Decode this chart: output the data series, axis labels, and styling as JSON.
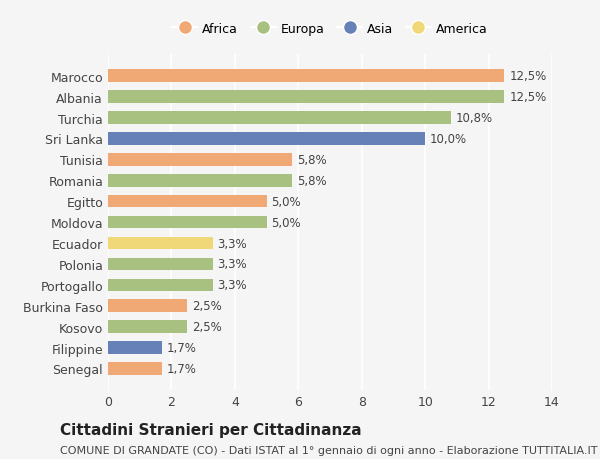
{
  "categories": [
    "Marocco",
    "Albania",
    "Turchia",
    "Sri Lanka",
    "Tunisia",
    "Romania",
    "Egitto",
    "Moldova",
    "Ecuador",
    "Polonia",
    "Portogallo",
    "Burkina Faso",
    "Kosovo",
    "Filippine",
    "Senegal"
  ],
  "values": [
    12.5,
    12.5,
    10.8,
    10.0,
    5.8,
    5.8,
    5.0,
    5.0,
    3.3,
    3.3,
    3.3,
    2.5,
    2.5,
    1.7,
    1.7
  ],
  "labels": [
    "12,5%",
    "12,5%",
    "10,8%",
    "10,0%",
    "5,8%",
    "5,8%",
    "5,0%",
    "5,0%",
    "3,3%",
    "3,3%",
    "3,3%",
    "2,5%",
    "2,5%",
    "1,7%",
    "1,7%"
  ],
  "colors": [
    "#F0A875",
    "#A8C080",
    "#A8C080",
    "#6680B8",
    "#F0A875",
    "#A8C080",
    "#F0A875",
    "#A8C080",
    "#F0D878",
    "#A8C080",
    "#A8C080",
    "#F0A875",
    "#A8C080",
    "#6680B8",
    "#F0A875"
  ],
  "legend_labels": [
    "Africa",
    "Europa",
    "Asia",
    "America"
  ],
  "legend_colors": [
    "#F0A875",
    "#A8C080",
    "#6680B8",
    "#F0D878"
  ],
  "xlim": [
    0,
    14
  ],
  "xticks": [
    0,
    2,
    4,
    6,
    8,
    10,
    12,
    14
  ],
  "title": "Cittadini Stranieri per Cittadinanza",
  "subtitle": "COMUNE DI GRANDATE (CO) - Dati ISTAT al 1° gennaio di ogni anno - Elaborazione TUTTITALIA.IT",
  "bg_color": "#f5f5f5",
  "bar_height": 0.6,
  "label_fontsize": 8.5,
  "title_fontsize": 11,
  "subtitle_fontsize": 8
}
